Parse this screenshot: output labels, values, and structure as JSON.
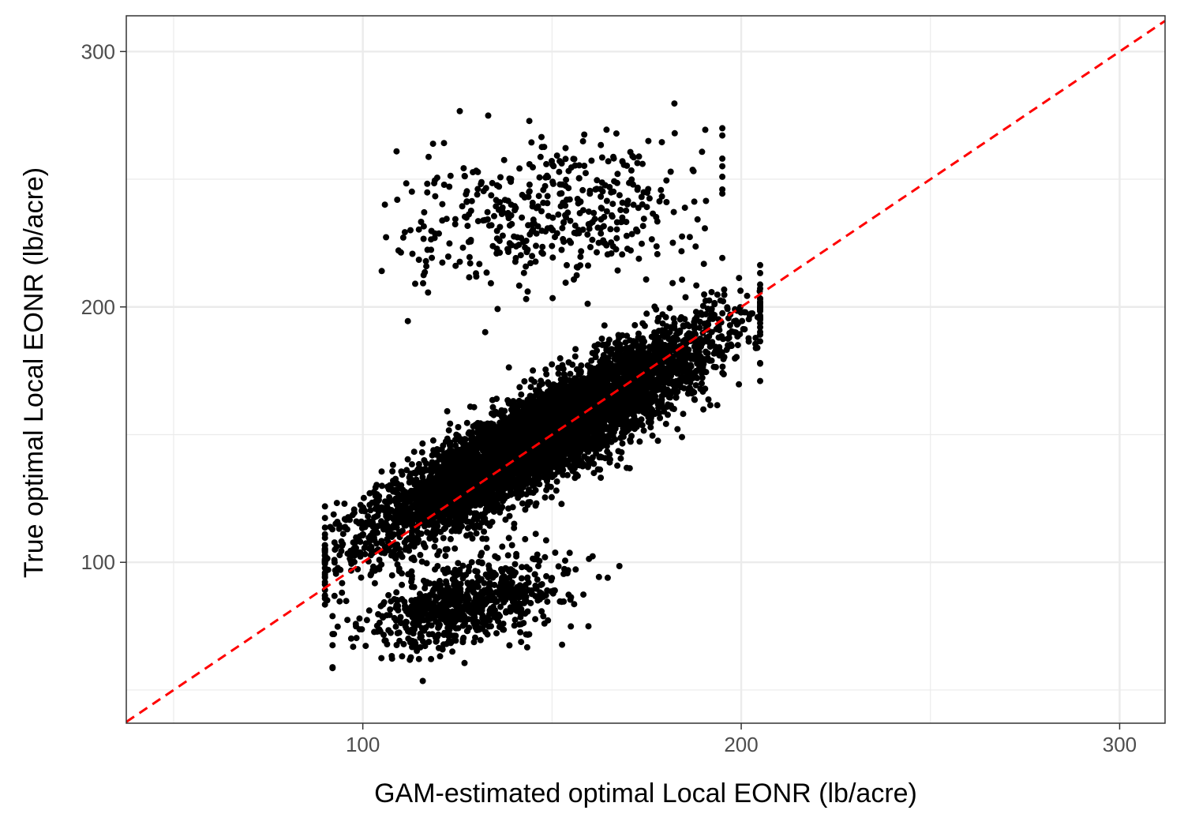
{
  "chart_data": {
    "type": "scatter",
    "title": "",
    "xlabel": "GAM-estimated optimal Local EONR (lb/acre)",
    "ylabel": "True optimal Local EONR (lb/acre)",
    "xlim": [
      37.5,
      312
    ],
    "ylim": [
      37,
      314
    ],
    "x_ticks": [
      100,
      200,
      300
    ],
    "y_ticks": [
      100,
      200,
      300
    ],
    "x_tick_labels": [
      "100",
      "200",
      "300"
    ],
    "y_tick_labels": [
      "100",
      "200",
      "300"
    ],
    "grid": true,
    "legend": "none",
    "point_color": "#000000",
    "reference_line": {
      "slope": 1,
      "intercept": 0,
      "style": "dashed",
      "color": "#ff0000"
    },
    "clusters": [
      {
        "name": "",
        "x_range": [
          90,
          205
        ],
        "center": [
          148,
          150
        ],
        "slope": 0.82,
        "x_sd": 22,
        "resid_sd": 9,
        "points": 6500
      },
      {
        "name": "",
        "x_range": [
          105,
          195
        ],
        "center": [
          150,
          236
        ],
        "slope": 0.15,
        "x_sd": 20,
        "resid_sd": 14,
        "points": 450
      },
      {
        "name": "",
        "x_range": [
          92,
          182
        ],
        "center": [
          128,
          84
        ],
        "slope": 0.35,
        "x_sd": 13,
        "resid_sd": 8,
        "points": 750
      }
    ]
  }
}
